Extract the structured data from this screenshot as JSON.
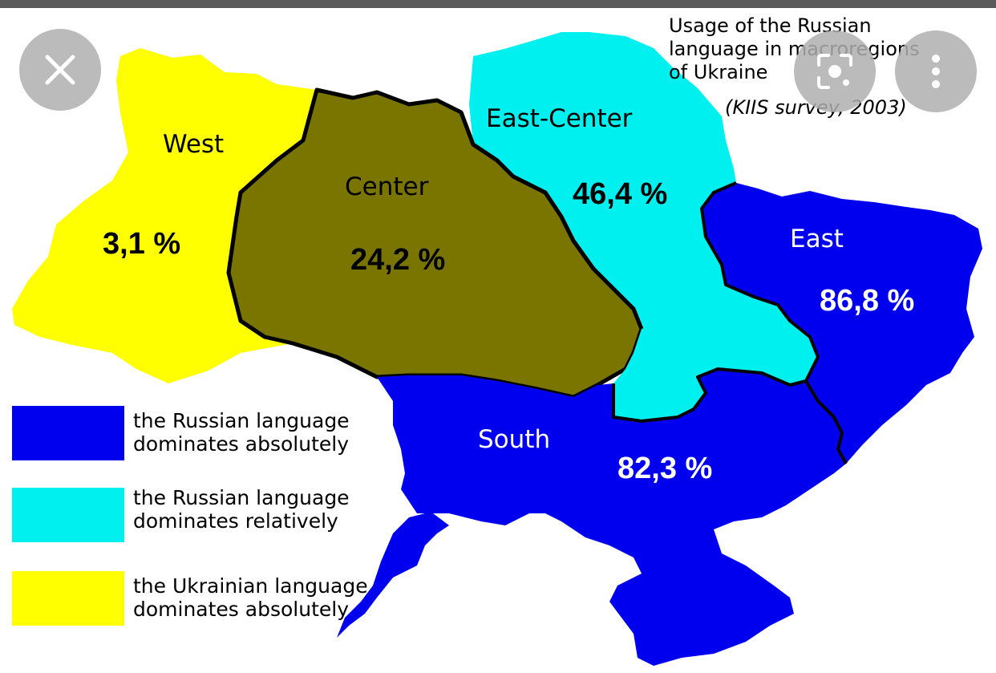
{
  "title": {
    "line1": "Usage of the Russian",
    "line2": "language in macroregions",
    "line3": "of Ukraine",
    "source": "(KIIS survey, 2003)"
  },
  "regions": {
    "west": {
      "name": "West",
      "value": "3,1 %"
    },
    "center": {
      "name": "Center",
      "value": "24,2 %"
    },
    "east_center": {
      "name": "East-Center",
      "value": "46,4 %"
    },
    "east": {
      "name": "East",
      "value": "86,8 %"
    },
    "south": {
      "name": "South",
      "value": "82,3 %"
    }
  },
  "legend": [
    {
      "color": "#0000ee",
      "line1": "the Russian language",
      "line2": "dominates absolutely"
    },
    {
      "color": "#00f0f0",
      "line1": "the Russian language",
      "line2": "dominates relatively"
    },
    {
      "color": "#ffff00",
      "line1": "the Ukrainian language",
      "line2": "dominates  absolutely"
    }
  ],
  "colors": {
    "west": "#ffff00",
    "center": "#7a7400",
    "east_center": "#00f0f0",
    "east": "#0000ee",
    "south": "#0000ee"
  },
  "buttons": {
    "close": "close-icon",
    "lens": "lens-icon",
    "more": "more-vertical-icon"
  }
}
